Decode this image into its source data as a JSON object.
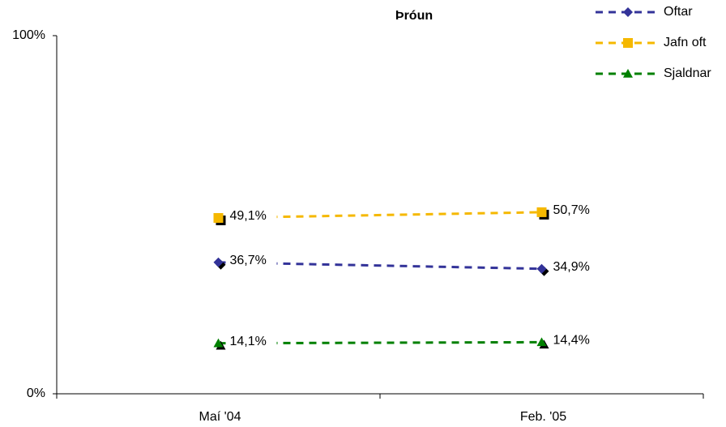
{
  "chart_data": {
    "type": "line",
    "title": "Þróun",
    "categories": [
      "Maí '04",
      "Feb. '05"
    ],
    "series": [
      {
        "name": "Oftar",
        "color": "#333399",
        "marker": "diamond",
        "values": [
          36.7,
          34.9
        ],
        "value_labels": [
          "36,7%",
          "34,9%"
        ]
      },
      {
        "name": "Jafn oft",
        "color": "#f5b800",
        "marker": "square",
        "values": [
          49.1,
          50.7
        ],
        "value_labels": [
          "49,1%",
          "50,7%"
        ]
      },
      {
        "name": "Sjaldnar",
        "color": "#008000",
        "marker": "triangle",
        "values": [
          14.1,
          14.4
        ],
        "value_labels": [
          "14,1%",
          "14,4%"
        ]
      }
    ],
    "ylim": [
      0,
      100
    ],
    "yticks": [
      {
        "value": 0,
        "label": "0%"
      },
      {
        "value": 100,
        "label": "100%"
      }
    ],
    "legend": "top-right"
  }
}
